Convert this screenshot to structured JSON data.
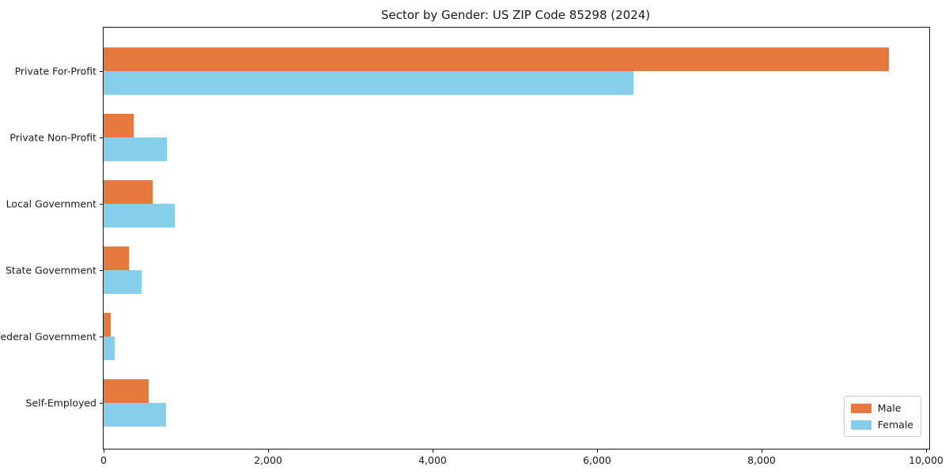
{
  "title": "Sector by Gender: US ZIP Code 85298 (2024)",
  "chart_data": {
    "type": "bar",
    "orientation": "horizontal",
    "title": "Sector by Gender: US ZIP Code 85298 (2024)",
    "categories": [
      "Private For-Profit",
      "Private Non-Profit",
      "Local Government",
      "State Government",
      "Federal Government",
      "Self-Employed"
    ],
    "series": [
      {
        "name": "Male",
        "color": "#e8793e",
        "values": [
          9550,
          370,
          600,
          310,
          90,
          550
        ]
      },
      {
        "name": "Female",
        "color": "#87ceeb",
        "values": [
          6440,
          765,
          870,
          460,
          130,
          755
        ]
      }
    ],
    "xlim": [
      0,
      10000
    ],
    "xticks": [
      0,
      2000,
      4000,
      6000,
      8000,
      10000
    ],
    "xtick_labels": [
      "0",
      "2,000",
      "4,000",
      "6,000",
      "8,000",
      "10,000"
    ],
    "xlabel": "",
    "ylabel": "",
    "grid": false,
    "legend_position": "lower right"
  },
  "legend": {
    "items": [
      {
        "label": "Male",
        "color": "#e8793e"
      },
      {
        "label": "Female",
        "color": "#87ceeb"
      }
    ]
  }
}
